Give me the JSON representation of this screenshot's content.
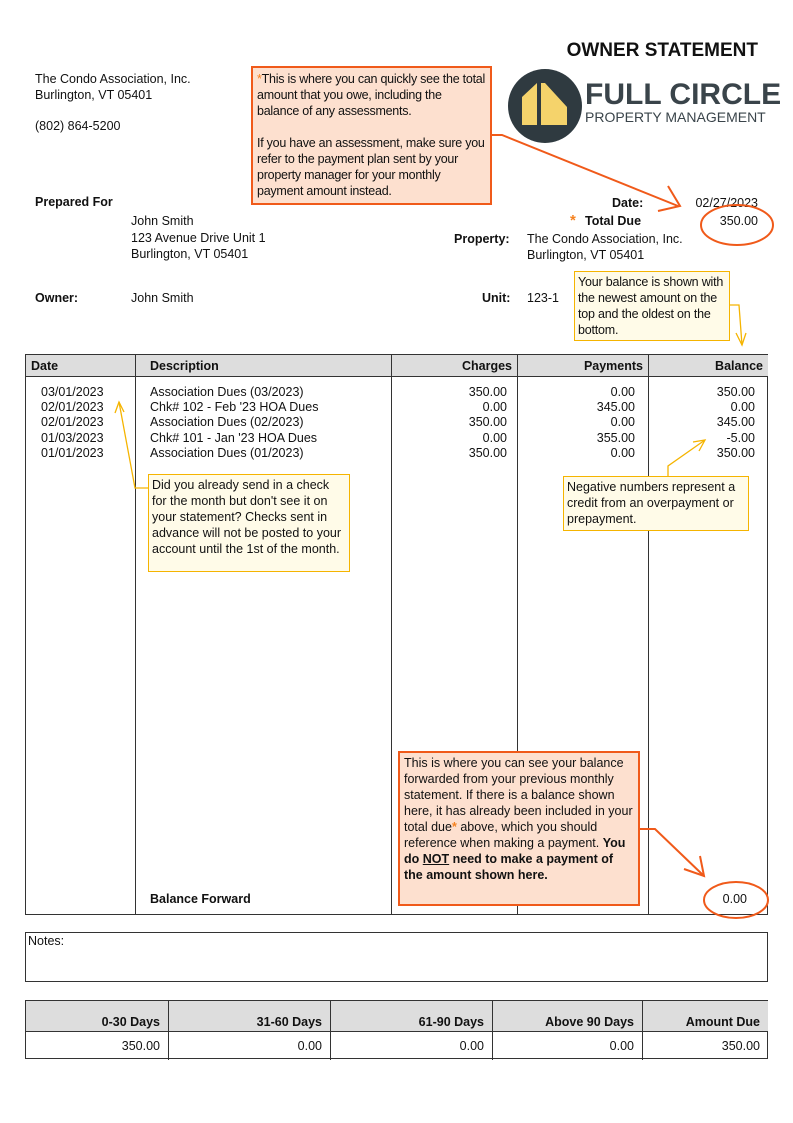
{
  "title": "OWNER STATEMENT",
  "company": {
    "name": "The Condo Association, Inc.",
    "city": "Burlington, VT 05401",
    "phone": "(802) 864-5200"
  },
  "logo": {
    "line1": "FULL CIRCLE",
    "line2": "PROPERTY MANAGEMENT"
  },
  "prepared_for": {
    "label": "Prepared For",
    "name": "John Smith",
    "address1": "123 Avenue Drive Unit 1",
    "address2": "Burlington, VT 05401"
  },
  "owner": {
    "label": "Owner:",
    "value": "John Smith"
  },
  "date": {
    "label": "Date:",
    "value": "02/27/2023"
  },
  "total_due": {
    "star": "*",
    "label": "Total Due",
    "value": "350.00"
  },
  "property": {
    "label": "Property:",
    "line1": "The Condo Association, Inc.",
    "line2": "Burlington, VT 05401"
  },
  "unit": {
    "label": "Unit:",
    "value": "123-1"
  },
  "table": {
    "headers": [
      "Date",
      "Description",
      "Charges",
      "Payments",
      "Balance"
    ],
    "rows": [
      {
        "date": "03/01/2023",
        "description": "Association Dues (03/2023)",
        "charges": "350.00",
        "payments": "0.00",
        "balance": "350.00"
      },
      {
        "date": "02/01/2023",
        "description": "Chk# 102 - Feb '23 HOA Dues",
        "charges": "0.00",
        "payments": "345.00",
        "balance": "0.00"
      },
      {
        "date": "02/01/2023",
        "description": "Association Dues (02/2023)",
        "charges": "350.00",
        "payments": "0.00",
        "balance": "345.00"
      },
      {
        "date": "01/03/2023",
        "description": "Chk# 101 - Jan '23 HOA Dues",
        "charges": "0.00",
        "payments": "355.00",
        "balance": "-5.00"
      },
      {
        "date": "01/01/2023",
        "description": "Association Dues (01/2023)",
        "charges": "350.00",
        "payments": "0.00",
        "balance": "350.00"
      }
    ],
    "balance_forward_label": "Balance Forward",
    "balance_forward_value": "0.00"
  },
  "notes_label": "Notes:",
  "aging": {
    "headers": [
      "0-30 Days",
      "31-60 Days",
      "61-90 Days",
      "Above 90 Days",
      "Amount Due"
    ],
    "values": [
      "350.00",
      "0.00",
      "0.00",
      "0.00",
      "350.00"
    ]
  },
  "callouts": {
    "total_due": {
      "star": "*",
      "p1": "This is where you can quickly see the total amount that you owe, including the balance of any assessments.",
      "p2": "If you have an assessment, make sure you refer to the payment plan sent by your property manager for your monthly payment amount instead."
    },
    "balance_order": "Your balance is shown with the newest amount on the top and the oldest on the bottom.",
    "checks": "Did you already send in a check for the month but don't see it on your statement? Checks sent in advance will not be posted to your account until the 1st of the month.",
    "negative": "Negative numbers represent a credit from an overpayment or prepayment.",
    "balance_forward": {
      "t1": "This is where you can see your balance forwarded from your previous monthly statement. If there is a balance shown here, it has already been included in your total due",
      "star": "*",
      "t2": " above, which you should reference when making a payment. ",
      "b1": "You do ",
      "b2": "NOT",
      "b3": " need to make a payment of the amount shown here."
    }
  },
  "colors": {
    "callout_orange": "#f05a1a",
    "callout_yellow": "#f5b400",
    "logo_dark": "#2f3a40",
    "logo_yellow": "#f5d36b"
  }
}
